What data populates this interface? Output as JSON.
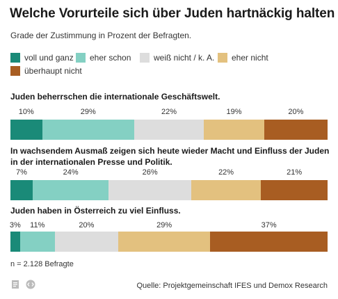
{
  "title": "Welche Vorurteile sich über Juden hartnäckig halten",
  "subtitle": "Grade der Zustimmung in Prozent der Befragten.",
  "legend": [
    {
      "label": "voll und ganz",
      "color": "#1a8a78"
    },
    {
      "label": "eher schon",
      "color": "#84d0c3"
    },
    {
      "label": "weiß nicht / k. A.",
      "color": "#dddddd"
    },
    {
      "label": "eher nicht",
      "color": "#e3c17f"
    },
    {
      "label": "überhaupt nicht",
      "color": "#a85d22"
    }
  ],
  "chart_data": {
    "type": "bar",
    "orientation": "horizontal-stacked",
    "unit": "%",
    "series_names": [
      "voll und ganz",
      "eher schon",
      "weiß nicht / k. A.",
      "eher nicht",
      "überhaupt nicht"
    ],
    "categories": [
      "Juden beherrschen die internationale Geschäftswelt.",
      "In wachsendem Ausmaß zeigen sich heute wieder Macht und Einfluss der Juden in der internationalen Presse und Politik.",
      "Juden haben in Österreich zu viel Einfluss."
    ],
    "rows": [
      {
        "values": [
          10,
          29,
          22,
          19,
          20
        ],
        "labels": [
          "10%",
          "29%",
          "22%",
          "19%",
          "20%"
        ]
      },
      {
        "values": [
          7,
          24,
          26,
          22,
          21
        ],
        "labels": [
          "7%",
          "24%",
          "26%",
          "22%",
          "21%"
        ]
      },
      {
        "values": [
          3,
          11,
          20,
          29,
          37
        ],
        "labels": [
          "3%",
          "11%",
          "20%",
          "29%",
          "37%"
        ]
      }
    ]
  },
  "note": "n = 2.128 Befragte",
  "source": "Quelle: Projektgemeinschaft IFES und Demox Research",
  "icons": {
    "doc": "document-icon",
    "embed": "embed-icon"
  }
}
